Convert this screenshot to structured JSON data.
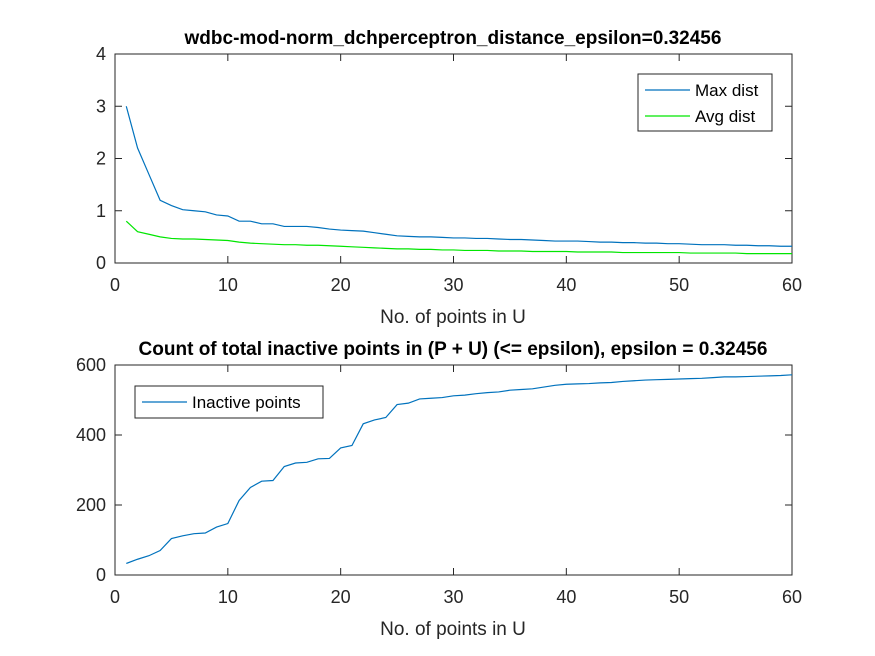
{
  "chart_data": [
    {
      "type": "line",
      "title": "wdbc-mod-norm_dchperceptron_distance_epsilon=0.32456",
      "xlabel": "No. of points in U",
      "ylabel": "",
      "xlim": [
        0,
        60
      ],
      "ylim": [
        0,
        4
      ],
      "xticks": [
        "0",
        "10",
        "20",
        "30",
        "40",
        "50",
        "60"
      ],
      "yticks": [
        "0",
        "1",
        "2",
        "3",
        "4"
      ],
      "grid": false,
      "legend_position": "top-right",
      "x": [
        1,
        2,
        3,
        4,
        5,
        6,
        7,
        8,
        9,
        10,
        11,
        12,
        13,
        14,
        15,
        16,
        17,
        18,
        19,
        20,
        21,
        22,
        23,
        24,
        25,
        26,
        27,
        28,
        29,
        30,
        31,
        32,
        33,
        34,
        35,
        36,
        37,
        38,
        39,
        40,
        41,
        42,
        43,
        44,
        45,
        46,
        47,
        48,
        49,
        50,
        51,
        52,
        53,
        54,
        55,
        56,
        57,
        58,
        59,
        60
      ],
      "series": [
        {
          "name": "Max dist",
          "color": "#0072bd",
          "values": [
            3.0,
            2.2,
            1.7,
            1.2,
            1.1,
            1.02,
            1.0,
            0.98,
            0.92,
            0.9,
            0.8,
            0.8,
            0.75,
            0.75,
            0.7,
            0.7,
            0.7,
            0.68,
            0.65,
            0.63,
            0.62,
            0.61,
            0.58,
            0.55,
            0.52,
            0.51,
            0.5,
            0.5,
            0.49,
            0.48,
            0.48,
            0.47,
            0.47,
            0.46,
            0.45,
            0.45,
            0.44,
            0.43,
            0.42,
            0.42,
            0.42,
            0.41,
            0.4,
            0.4,
            0.39,
            0.39,
            0.38,
            0.38,
            0.37,
            0.37,
            0.36,
            0.35,
            0.35,
            0.35,
            0.34,
            0.34,
            0.33,
            0.33,
            0.32,
            0.32
          ]
        },
        {
          "name": "Avg dist",
          "color": "#00e600",
          "values": [
            0.8,
            0.6,
            0.55,
            0.5,
            0.47,
            0.46,
            0.46,
            0.45,
            0.44,
            0.43,
            0.4,
            0.38,
            0.37,
            0.36,
            0.35,
            0.35,
            0.34,
            0.34,
            0.33,
            0.32,
            0.31,
            0.3,
            0.29,
            0.28,
            0.27,
            0.27,
            0.26,
            0.26,
            0.25,
            0.25,
            0.24,
            0.24,
            0.24,
            0.23,
            0.23,
            0.23,
            0.22,
            0.22,
            0.22,
            0.22,
            0.21,
            0.21,
            0.21,
            0.21,
            0.2,
            0.2,
            0.2,
            0.2,
            0.2,
            0.2,
            0.19,
            0.19,
            0.19,
            0.19,
            0.19,
            0.18,
            0.18,
            0.18,
            0.18,
            0.18
          ]
        }
      ]
    },
    {
      "type": "line",
      "title": "Count of total inactive points in (P + U) (<= epsilon), epsilon = 0.32456",
      "xlabel": "No. of points in U",
      "ylabel": "",
      "xlim": [
        0,
        60
      ],
      "ylim": [
        0,
        600
      ],
      "xticks": [
        "0",
        "10",
        "20",
        "30",
        "40",
        "50",
        "60"
      ],
      "yticks": [
        "0",
        "200",
        "400",
        "600"
      ],
      "grid": false,
      "legend_position": "top-left",
      "x": [
        1,
        2,
        3,
        4,
        5,
        6,
        7,
        8,
        9,
        10,
        11,
        12,
        13,
        14,
        15,
        16,
        17,
        18,
        19,
        20,
        21,
        22,
        23,
        24,
        25,
        26,
        27,
        28,
        29,
        30,
        31,
        32,
        33,
        34,
        35,
        36,
        37,
        38,
        39,
        40,
        41,
        42,
        43,
        44,
        45,
        46,
        47,
        48,
        49,
        50,
        51,
        52,
        53,
        54,
        55,
        56,
        57,
        58,
        59,
        60
      ],
      "series": [
        {
          "name": "Inactive points",
          "color": "#0072bd",
          "values": [
            33,
            45,
            55,
            70,
            104,
            112,
            118,
            120,
            137,
            147,
            213,
            250,
            268,
            270,
            310,
            320,
            322,
            332,
            333,
            363,
            370,
            432,
            443,
            450,
            487,
            491,
            503,
            505,
            507,
            512,
            514,
            518,
            521,
            523,
            528,
            530,
            532,
            537,
            542,
            545,
            546,
            547,
            549,
            550,
            553,
            555,
            557,
            558,
            559,
            560,
            561,
            562,
            564,
            566,
            566,
            567,
            568,
            569,
            570,
            572
          ]
        }
      ]
    }
  ]
}
